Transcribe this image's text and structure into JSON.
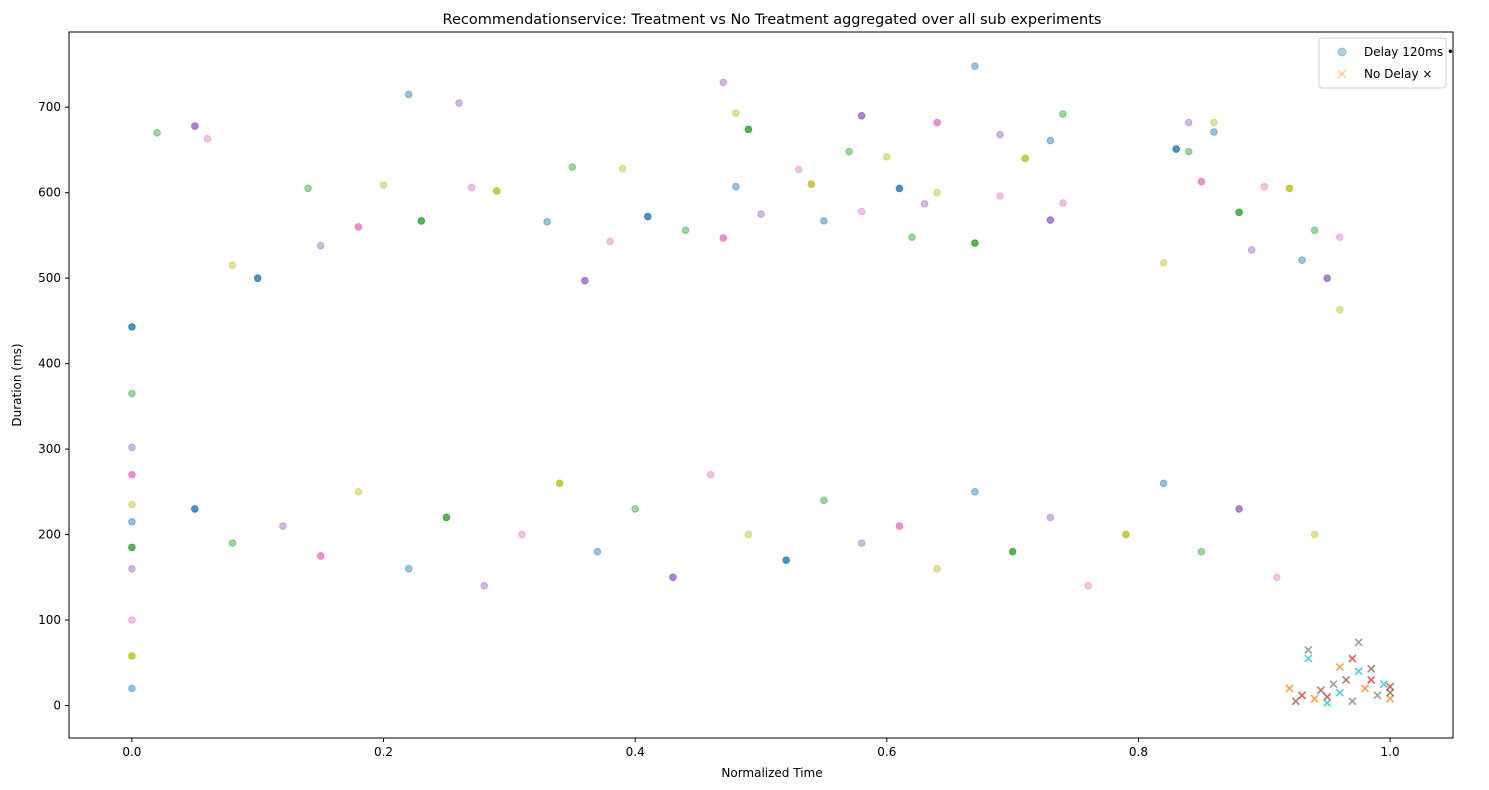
{
  "chart_data": {
    "type": "scatter",
    "title": "Recommendationservice: Treatment vs No Treatment aggregated over all sub experiments",
    "xlabel": "Normalized Time",
    "ylabel": "Duration (ms)",
    "xlim": [
      -0.05,
      1.05
    ],
    "ylim": [
      -38,
      788
    ],
    "x_ticks": [
      0.0,
      0.2,
      0.4,
      0.6,
      0.8,
      1.0
    ],
    "x_tick_labels": [
      "0.0",
      "0.2",
      "0.4",
      "0.6",
      "0.8",
      "1.0"
    ],
    "y_ticks": [
      0,
      100,
      200,
      300,
      400,
      500,
      600,
      700
    ],
    "y_tick_labels": [
      "0",
      "100",
      "200",
      "300",
      "400",
      "500",
      "600",
      "700"
    ],
    "grid": false,
    "legend_position": "top-right",
    "legend": [
      {
        "label": "Delay 120ms •",
        "marker": "circle",
        "color": "#1f77b4"
      },
      {
        "label": "No Delay ×",
        "marker": "x",
        "color": "#ff7f0e"
      }
    ],
    "series": [
      {
        "name": "Delay 120ms •",
        "marker": "circle",
        "points": [
          [
            0.0,
            443
          ],
          [
            0.0,
            365
          ],
          [
            0.0,
            302
          ],
          [
            0.0,
            270
          ],
          [
            0.0,
            235
          ],
          [
            0.0,
            215
          ],
          [
            0.0,
            185
          ],
          [
            0.0,
            160
          ],
          [
            0.0,
            100
          ],
          [
            0.0,
            58
          ],
          [
            0.0,
            20
          ],
          [
            0.02,
            670
          ],
          [
            0.05,
            678
          ],
          [
            0.06,
            663
          ],
          [
            0.08,
            515
          ],
          [
            0.1,
            500
          ],
          [
            0.14,
            605
          ],
          [
            0.15,
            538
          ],
          [
            0.18,
            560
          ],
          [
            0.2,
            609
          ],
          [
            0.22,
            715
          ],
          [
            0.23,
            567
          ],
          [
            0.26,
            705
          ],
          [
            0.27,
            606
          ],
          [
            0.29,
            602
          ],
          [
            0.33,
            566
          ],
          [
            0.35,
            630
          ],
          [
            0.36,
            497
          ],
          [
            0.38,
            543
          ],
          [
            0.39,
            628
          ],
          [
            0.41,
            572
          ],
          [
            0.44,
            556
          ],
          [
            0.47,
            729
          ],
          [
            0.47,
            547
          ],
          [
            0.48,
            693
          ],
          [
            0.48,
            607
          ],
          [
            0.49,
            674
          ],
          [
            0.5,
            575
          ],
          [
            0.53,
            627
          ],
          [
            0.54,
            610
          ],
          [
            0.55,
            567
          ],
          [
            0.57,
            648
          ],
          [
            0.58,
            690
          ],
          [
            0.58,
            578
          ],
          [
            0.6,
            642
          ],
          [
            0.61,
            605
          ],
          [
            0.62,
            548
          ],
          [
            0.63,
            587
          ],
          [
            0.64,
            682
          ],
          [
            0.64,
            600
          ],
          [
            0.67,
            748
          ],
          [
            0.67,
            541
          ],
          [
            0.69,
            668
          ],
          [
            0.69,
            596
          ],
          [
            0.71,
            640
          ],
          [
            0.73,
            661
          ],
          [
            0.74,
            692
          ],
          [
            0.73,
            568
          ],
          [
            0.74,
            588
          ],
          [
            0.82,
            518
          ],
          [
            0.83,
            651
          ],
          [
            0.84,
            648
          ],
          [
            0.84,
            682
          ],
          [
            0.85,
            613
          ],
          [
            0.86,
            682
          ],
          [
            0.86,
            671
          ],
          [
            0.88,
            577
          ],
          [
            0.89,
            533
          ],
          [
            0.9,
            607
          ],
          [
            0.92,
            605
          ],
          [
            0.93,
            521
          ],
          [
            0.94,
            556
          ],
          [
            0.95,
            500
          ],
          [
            0.96,
            548
          ],
          [
            0.96,
            463
          ],
          [
            0.05,
            230
          ],
          [
            0.08,
            190
          ],
          [
            0.12,
            210
          ],
          [
            0.15,
            175
          ],
          [
            0.18,
            250
          ],
          [
            0.22,
            160
          ],
          [
            0.25,
            220
          ],
          [
            0.28,
            140
          ],
          [
            0.31,
            200
          ],
          [
            0.34,
            260
          ],
          [
            0.37,
            180
          ],
          [
            0.4,
            230
          ],
          [
            0.43,
            150
          ],
          [
            0.46,
            270
          ],
          [
            0.49,
            200
          ],
          [
            0.52,
            170
          ],
          [
            0.55,
            240
          ],
          [
            0.58,
            190
          ],
          [
            0.61,
            210
          ],
          [
            0.64,
            160
          ],
          [
            0.67,
            250
          ],
          [
            0.7,
            180
          ],
          [
            0.73,
            220
          ],
          [
            0.76,
            140
          ],
          [
            0.79,
            200
          ],
          [
            0.82,
            260
          ],
          [
            0.85,
            180
          ],
          [
            0.88,
            230
          ],
          [
            0.91,
            150
          ],
          [
            0.94,
            200
          ]
        ]
      },
      {
        "name": "No Delay ×",
        "marker": "x",
        "points": [
          [
            0.92,
            20
          ],
          [
            0.925,
            5
          ],
          [
            0.93,
            12
          ],
          [
            0.935,
            65
          ],
          [
            0.935,
            55
          ],
          [
            0.94,
            8
          ],
          [
            0.945,
            18
          ],
          [
            0.95,
            10
          ],
          [
            0.955,
            25
          ],
          [
            0.96,
            15
          ],
          [
            0.96,
            45
          ],
          [
            0.965,
            30
          ],
          [
            0.97,
            55
          ],
          [
            0.975,
            74
          ],
          [
            0.975,
            40
          ],
          [
            0.98,
            20
          ],
          [
            0.985,
            43
          ],
          [
            0.985,
            30
          ],
          [
            0.99,
            12
          ],
          [
            0.995,
            25
          ],
          [
            1.0,
            8
          ],
          [
            1.0,
            15
          ],
          [
            1.0,
            22
          ],
          [
            0.97,
            5
          ],
          [
            0.95,
            3
          ]
        ]
      }
    ]
  }
}
